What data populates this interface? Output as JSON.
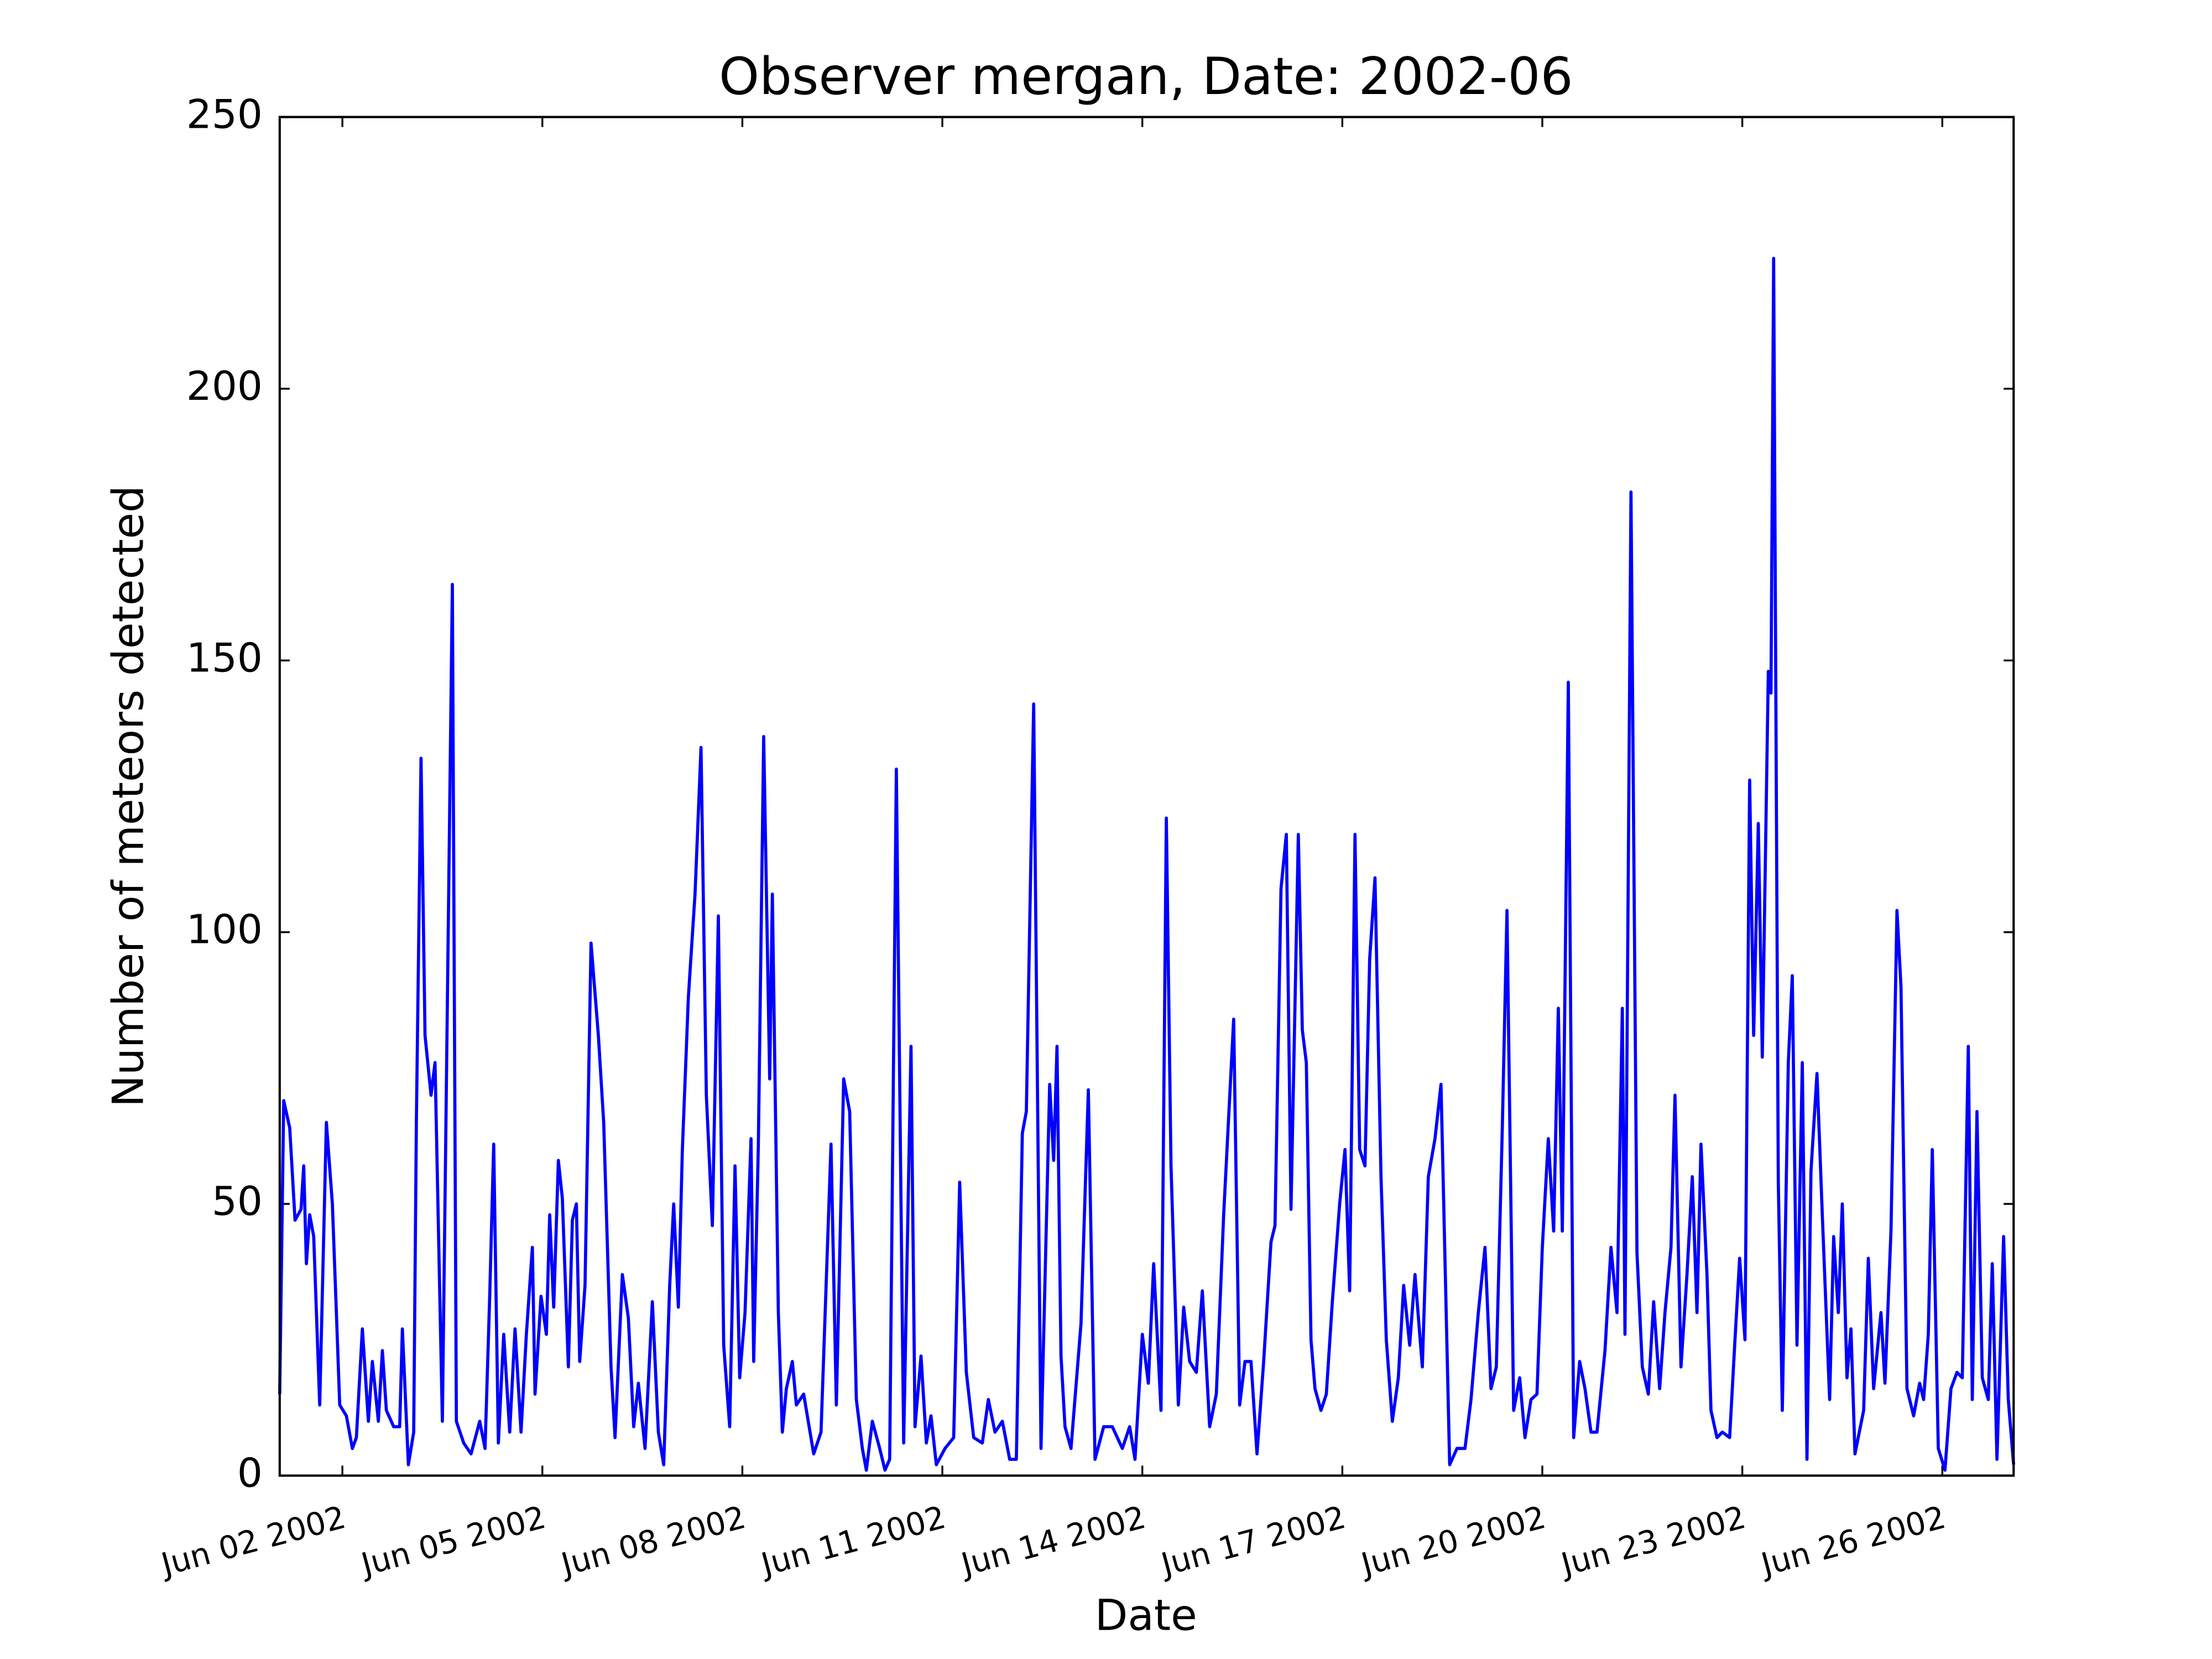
{
  "chart_data": {
    "type": "line",
    "title": "Observer mergan, Date: 2002-06",
    "x_label": "Date",
    "y_label": "Number of meteors detected",
    "color": "#0000ff",
    "x": [
      1.06,
      1.12,
      1.21,
      1.29,
      1.38,
      1.42,
      1.46,
      1.51,
      1.57,
      1.66,
      1.76,
      1.85,
      1.91,
      1.96,
      2.06,
      2.15,
      2.21,
      2.3,
      2.39,
      2.45,
      2.54,
      2.6,
      2.66,
      2.77,
      2.86,
      2.9,
      2.99,
      3.07,
      3.11,
      3.18,
      3.24,
      3.33,
      3.39,
      3.5,
      3.65,
      3.71,
      3.82,
      3.93,
      4.06,
      4.14,
      4.21,
      4.27,
      4.34,
      4.42,
      4.51,
      4.59,
      4.68,
      4.76,
      4.85,
      4.89,
      4.98,
      5.06,
      5.11,
      5.17,
      5.24,
      5.3,
      5.39,
      5.45,
      5.51,
      5.56,
      5.64,
      5.73,
      5.84,
      5.92,
      6.03,
      6.09,
      6.2,
      6.29,
      6.37,
      6.44,
      6.54,
      6.65,
      6.74,
      6.82,
      6.91,
      6.97,
      7.04,
      7.1,
      7.19,
      7.29,
      7.38,
      7.46,
      7.55,
      7.64,
      7.72,
      7.81,
      7.89,
      7.96,
      8.04,
      8.13,
      8.17,
      8.24,
      8.32,
      8.41,
      8.45,
      8.54,
      8.6,
      8.66,
      8.75,
      8.81,
      8.92,
      9.07,
      9.18,
      9.33,
      9.41,
      9.52,
      9.61,
      9.71,
      9.8,
      9.86,
      9.95,
      10.06,
      10.14,
      10.21,
      10.31,
      10.38,
      10.42,
      10.53,
      10.59,
      10.68,
      10.76,
      10.83,
      10.91,
      11.04,
      11.17,
      11.26,
      11.36,
      11.47,
      11.6,
      11.69,
      11.79,
      11.9,
      12.01,
      12.11,
      12.2,
      12.26,
      12.37,
      12.48,
      12.61,
      12.67,
      12.72,
      12.78,
      12.84,
      12.93,
      13.08,
      13.19,
      13.29,
      13.42,
      13.55,
      13.7,
      13.81,
      13.89,
      14.0,
      14.09,
      14.17,
      14.28,
      14.36,
      14.43,
      14.54,
      14.62,
      14.71,
      14.81,
      14.9,
      15.01,
      15.11,
      15.22,
      15.37,
      15.46,
      15.54,
      15.63,
      15.72,
      15.82,
      15.93,
      15.99,
      16.08,
      16.16,
      16.23,
      16.34,
      16.4,
      16.46,
      16.53,
      16.59,
      16.68,
      16.76,
      16.85,
      16.96,
      17.04,
      17.11,
      17.19,
      17.26,
      17.34,
      17.41,
      17.49,
      17.58,
      17.66,
      17.75,
      17.84,
      17.92,
      18.01,
      18.09,
      18.2,
      18.29,
      18.39,
      18.48,
      18.61,
      18.72,
      18.84,
      18.93,
      19.04,
      19.14,
      19.23,
      19.31,
      19.4,
      19.47,
      19.57,
      19.66,
      19.74,
      19.83,
      19.92,
      20.0,
      20.09,
      20.17,
      20.24,
      20.3,
      20.39,
      20.47,
      20.56,
      20.64,
      20.73,
      20.82,
      20.94,
      21.03,
      21.12,
      21.2,
      21.24,
      21.33,
      21.42,
      21.5,
      21.59,
      21.67,
      21.76,
      21.84,
      21.93,
      21.99,
      22.08,
      22.17,
      22.25,
      22.32,
      22.38,
      22.47,
      22.53,
      22.62,
      22.7,
      22.81,
      22.89,
      22.96,
      23.04,
      23.11,
      23.17,
      23.24,
      23.3,
      23.39,
      23.43,
      23.47,
      23.54,
      23.6,
      23.69,
      23.75,
      23.82,
      23.9,
      23.97,
      24.03,
      24.12,
      24.2,
      24.31,
      24.37,
      24.44,
      24.5,
      24.57,
      24.63,
      24.69,
      24.82,
      24.89,
      24.97,
      25.08,
      25.14,
      25.23,
      25.32,
      25.38,
      25.47,
      25.57,
      25.66,
      25.72,
      25.79,
      25.85,
      25.94,
      26.04,
      26.13,
      26.22,
      26.3,
      26.39,
      26.45,
      26.52,
      26.6,
      26.69,
      26.75,
      26.82,
      26.92,
      26.99,
      27.07
    ],
    "values": [
      15,
      69,
      64,
      47,
      49,
      57,
      39,
      48,
      44,
      13,
      65,
      50,
      30,
      13,
      11,
      5,
      7,
      27,
      10,
      21,
      10,
      23,
      12,
      9,
      9,
      27,
      2,
      8,
      65,
      132,
      81,
      70,
      76,
      10,
      164,
      10,
      6,
      4,
      10,
      5,
      33,
      61,
      6,
      26,
      8,
      27,
      8,
      26,
      42,
      15,
      33,
      26,
      48,
      31,
      58,
      51,
      20,
      47,
      50,
      21,
      35,
      98,
      81,
      65,
      20,
      7,
      37,
      29,
      9,
      17,
      5,
      32,
      8,
      2,
      35,
      50,
      31,
      60,
      88,
      107,
      134,
      70,
      46,
      103,
      24,
      9,
      57,
      18,
      30,
      62,
      21,
      61,
      136,
      73,
      107,
      30,
      8,
      16,
      21,
      13,
      15,
      4,
      8,
      61,
      13,
      73,
      67,
      14,
      5,
      1,
      10,
      5,
      1,
      3,
      130,
      50,
      6,
      79,
      9,
      22,
      6,
      11,
      2,
      5,
      7,
      54,
      19,
      7,
      6,
      14,
      8,
      10,
      3,
      3,
      63,
      67,
      142,
      5,
      72,
      58,
      79,
      22,
      9,
      5,
      28,
      71,
      3,
      9,
      9,
      5,
      9,
      3,
      26,
      17,
      39,
      12,
      121,
      57,
      13,
      31,
      21,
      19,
      34,
      9,
      15,
      48,
      84,
      13,
      21,
      21,
      4,
      21,
      43,
      46,
      108,
      118,
      49,
      118,
      82,
      76,
      25,
      16,
      12,
      15,
      32,
      50,
      60,
      34,
      118,
      60,
      57,
      95,
      110,
      55,
      25,
      10,
      18,
      35,
      24,
      37,
      20,
      55,
      62,
      72,
      2,
      5,
      5,
      14,
      30,
      42,
      16,
      20,
      64,
      104,
      12,
      18,
      7,
      14,
      15,
      42,
      62,
      45,
      86,
      45,
      146,
      7,
      21,
      16,
      8,
      8,
      23,
      42,
      30,
      86,
      26,
      181,
      41,
      20,
      15,
      32,
      16,
      30,
      42,
      70,
      20,
      37,
      55,
      30,
      61,
      37,
      12,
      7,
      8,
      7,
      25,
      40,
      25,
      128,
      81,
      120,
      77,
      148,
      144,
      224,
      54,
      12,
      76,
      92,
      24,
      76,
      3,
      56,
      74,
      48,
      14,
      44,
      30,
      50,
      18,
      27,
      4,
      12,
      40,
      16,
      30,
      17,
      45,
      104,
      90,
      16,
      11,
      17,
      14,
      26,
      60,
      5,
      1,
      16,
      19,
      18,
      79,
      14,
      67,
      18,
      14,
      39,
      3,
      44,
      14,
      2
    ],
    "xlim": [
      1.06,
      27.07
    ],
    "xticks": [
      {
        "value": 2,
        "label": "Jun 02 2002"
      },
      {
        "value": 5,
        "label": "Jun 05 2002"
      },
      {
        "value": 8,
        "label": "Jun 08 2002"
      },
      {
        "value": 11,
        "label": "Jun 11 2002"
      },
      {
        "value": 14,
        "label": "Jun 14 2002"
      },
      {
        "value": 17,
        "label": "Jun 17 2002"
      },
      {
        "value": 20,
        "label": "Jun 20 2002"
      },
      {
        "value": 23,
        "label": "Jun 23 2002"
      },
      {
        "value": 26,
        "label": "Jun 26 2002"
      }
    ],
    "ylim": [
      0,
      250
    ],
    "yticks": [
      0,
      50,
      100,
      150,
      200,
      250
    ],
    "grid": false
  }
}
